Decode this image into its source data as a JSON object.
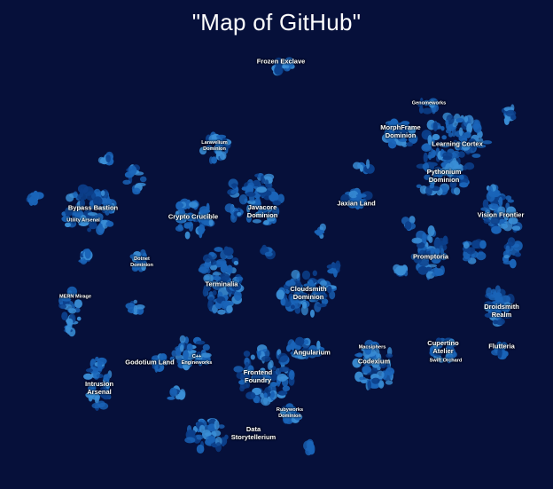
{
  "map": {
    "title": "\"Map of GitHub\"",
    "colors": {
      "background": "#06103a",
      "cluster_dark": "#0c3f8a",
      "cluster_mid": "#1a64b8",
      "cluster_light": "#3a8ed6",
      "label": "#ffffff"
    },
    "regions": [
      {
        "name": "Frozen Exclave",
        "size": "normal"
      },
      {
        "name": "Genomeworks",
        "size": "small"
      },
      {
        "name": "MorphFrame\nDominion",
        "size": "normal"
      },
      {
        "name": "Learning Cortex",
        "size": "normal"
      },
      {
        "name": "Laravelium\nDominion",
        "size": "small"
      },
      {
        "name": "Pythonium\nDominion",
        "size": "normal"
      },
      {
        "name": "Bypass Bastion",
        "size": "normal"
      },
      {
        "name": "Utility Arsenal",
        "size": "small"
      },
      {
        "name": "Javacore\nDominion",
        "size": "normal"
      },
      {
        "name": "Crypto Crucible",
        "size": "normal"
      },
      {
        "name": "Jaxian Land",
        "size": "normal"
      },
      {
        "name": "Vision Frontier",
        "size": "normal"
      },
      {
        "name": "Promptoria",
        "size": "normal"
      },
      {
        "name": "Dotnet\nDominion",
        "size": "small"
      },
      {
        "name": "Terminalia",
        "size": "normal"
      },
      {
        "name": "Cloudsmith\nDominion",
        "size": "normal"
      },
      {
        "name": "MERN Mirage",
        "size": "small"
      },
      {
        "name": "Droidsmith\nRealm",
        "size": "normal"
      },
      {
        "name": "Cupertino\nAtelier",
        "size": "normal"
      },
      {
        "name": "Swift Orchard",
        "size": "small"
      },
      {
        "name": "Flutteria",
        "size": "normal"
      },
      {
        "name": "Macsiphers",
        "size": "small"
      },
      {
        "name": "Codexium",
        "size": "normal"
      },
      {
        "name": "Angularium",
        "size": "normal"
      },
      {
        "name": "C++\nEngineworks",
        "size": "small"
      },
      {
        "name": "Godotium Land",
        "size": "normal"
      },
      {
        "name": "Intrusion\nArsenal",
        "size": "normal"
      },
      {
        "name": "Frontend\nFoundry",
        "size": "normal"
      },
      {
        "name": "Rubyworks\nDominion",
        "size": "small"
      },
      {
        "name": "Data\nStorytellerium",
        "size": "normal"
      }
    ]
  }
}
